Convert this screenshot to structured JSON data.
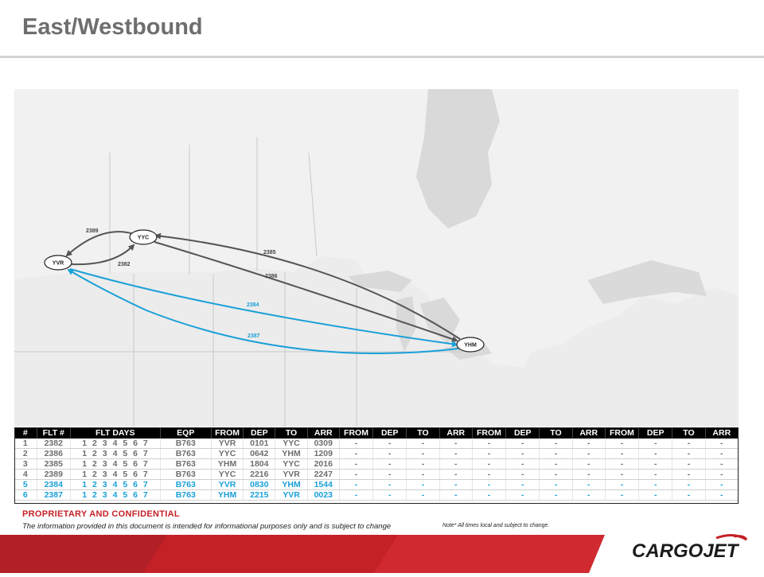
{
  "title": "East/Westbound",
  "map": {
    "nodes": [
      "YVR",
      "YYC",
      "YHM"
    ],
    "routes": [
      "2389",
      "2382",
      "2385",
      "2386",
      "2384",
      "2387"
    ],
    "colors": {
      "grey_route": "#555555",
      "blue_route": "#1aa0d8"
    }
  },
  "table": {
    "headers": [
      "#",
      "FLT #",
      "FLT DAYS",
      "EQP",
      "FROM",
      "DEP",
      "TO",
      "ARR",
      "FROM",
      "DEP",
      "TO",
      "ARR",
      "FROM",
      "DEP",
      "TO",
      "ARR",
      "FROM",
      "DEP",
      "TO",
      "ARR"
    ],
    "rows": [
      [
        "1",
        "2382",
        "1 2 3 4 5 6 7",
        "B763",
        "YVR",
        "0101",
        "YYC",
        "0309",
        "-",
        "-",
        "-",
        "-",
        "-",
        "-",
        "-",
        "-",
        "-",
        "-",
        "-",
        "-"
      ],
      [
        "2",
        "2386",
        "1 2 3 4 5 6 7",
        "B763",
        "YYC",
        "0642",
        "YHM",
        "1209",
        "-",
        "-",
        "-",
        "-",
        "-",
        "-",
        "-",
        "-",
        "-",
        "-",
        "-",
        "-"
      ],
      [
        "3",
        "2385",
        "1 2 3 4 5 6 7",
        "B763",
        "YHM",
        "1804",
        "YYC",
        "2016",
        "-",
        "-",
        "-",
        "-",
        "-",
        "-",
        "-",
        "-",
        "-",
        "-",
        "-",
        "-"
      ],
      [
        "4",
        "2389",
        "1 2 3 4 5 6 7",
        "B763",
        "YYC",
        "2216",
        "YVR",
        "2247",
        "-",
        "-",
        "-",
        "-",
        "-",
        "-",
        "-",
        "-",
        "-",
        "-",
        "-",
        "-"
      ],
      [
        "5",
        "2384",
        "1 2 3 4 5 6 7",
        "B763",
        "YVR",
        "0830",
        "YHM",
        "1544",
        "-",
        "-",
        "-",
        "-",
        "-",
        "-",
        "-",
        "-",
        "-",
        "-",
        "-",
        "-"
      ],
      [
        "6",
        "2387",
        "1 2 3 4 5 6 7",
        "B763",
        "YHM",
        "2215",
        "YVR",
        "0023",
        "-",
        "-",
        "-",
        "-",
        "-",
        "-",
        "-",
        "-",
        "-",
        "-",
        "-",
        "-"
      ]
    ],
    "row_colors": [
      "grey",
      "grey",
      "grey",
      "grey",
      "blue",
      "blue"
    ]
  },
  "footer": {
    "proprietary": "PROPRIETARY AND CONFIDENTIAL",
    "disclaimer": "The information provided in this document is intended for informational purposes only and is subject to change",
    "note": "Note* All times local and subject to change.",
    "logo_text": "CARGOJET",
    "accent_color": "#c42127"
  }
}
